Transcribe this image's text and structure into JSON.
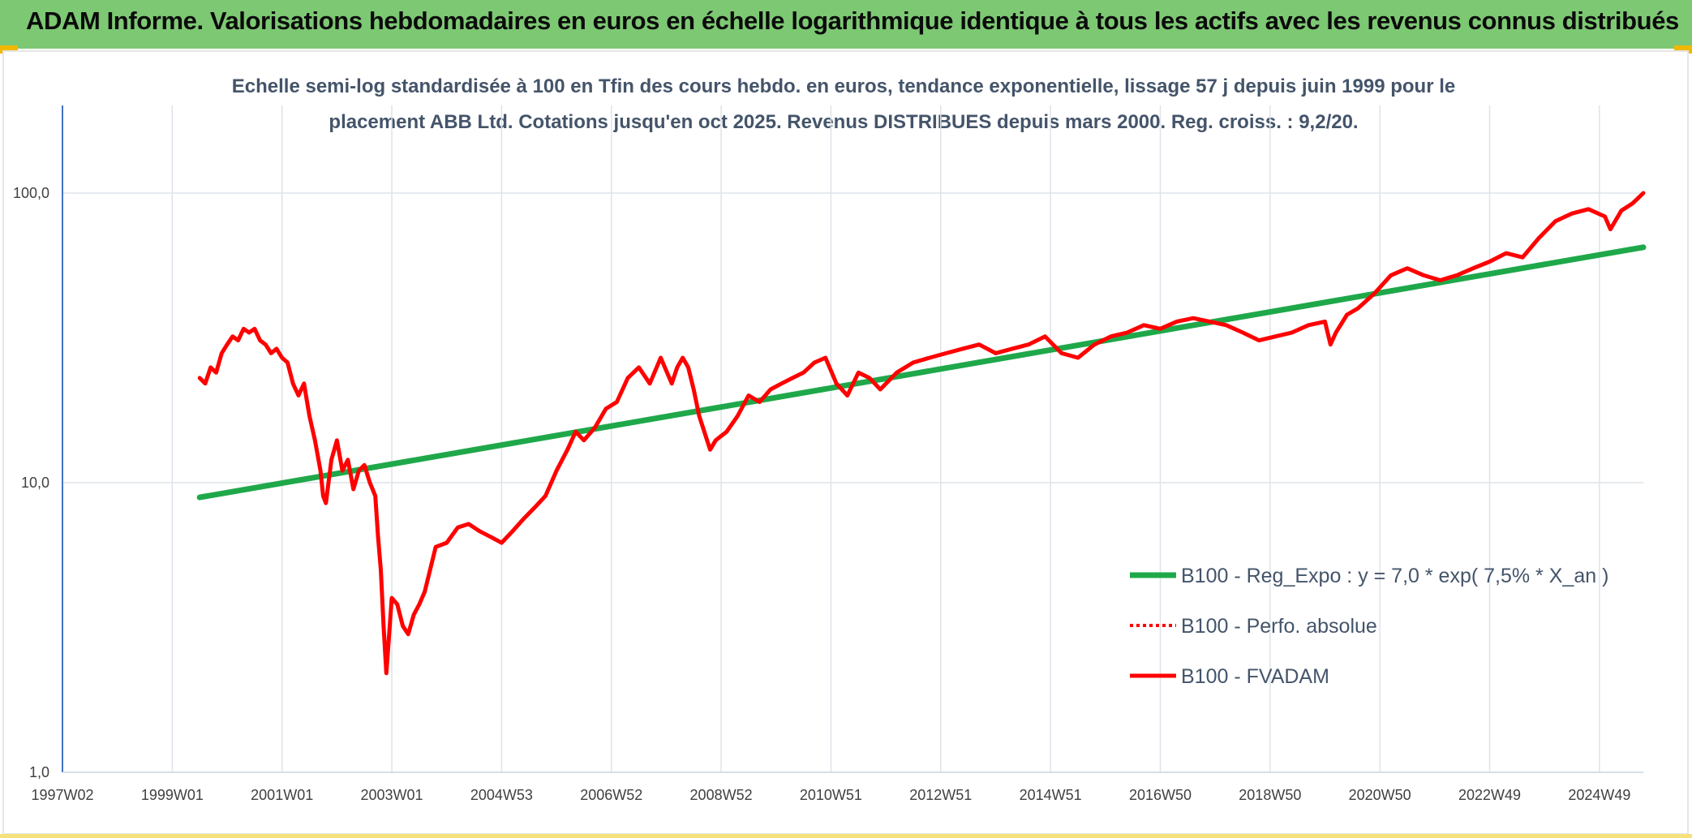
{
  "header": {
    "title": "ADAM Informe. Valorisations hebdomadaires en euros en échelle logarithmique identique à tous les actifs avec les revenus connus distribués"
  },
  "colors": {
    "banner": "#7dc873",
    "trend": "#1fa84a",
    "perf": "#ff0000",
    "fvadam": "#ff0000",
    "grid": "#dde3ea",
    "axis": "#4472c4"
  },
  "chart_data": {
    "type": "line",
    "title_line1": "Echelle semi-log standardisée à 100 en Tfin des cours hebdo. en euros, tendance exponentielle, lissage 57 j depuis juin 1999 pour le",
    "title_line2": "placement ABB Ltd. Cotations jusqu'en oct 2025. Revenus DISTRIBUES depuis mars 2000. Reg. croiss. : 9,2/20.",
    "y_scale": "log",
    "ylim": [
      1,
      200
    ],
    "y_ticks": [
      {
        "value": 1,
        "label": "1,0"
      },
      {
        "value": 10,
        "label": "10,0"
      },
      {
        "value": 100,
        "label": "100,0"
      }
    ],
    "xlim": [
      1997.0,
      2025.8
    ],
    "x_ticks": [
      {
        "value": 1997.0,
        "label": "1997W02"
      },
      {
        "value": 1999.0,
        "label": "1999W01"
      },
      {
        "value": 2001.0,
        "label": "2001W01"
      },
      {
        "value": 2003.0,
        "label": "2003W01"
      },
      {
        "value": 2005.0,
        "label": "2004W53"
      },
      {
        "value": 2007.0,
        "label": "2006W52"
      },
      {
        "value": 2009.0,
        "label": "2008W52"
      },
      {
        "value": 2011.0,
        "label": "2010W51"
      },
      {
        "value": 2013.0,
        "label": "2012W51"
      },
      {
        "value": 2015.0,
        "label": "2014W51"
      },
      {
        "value": 2017.0,
        "label": "2016W50"
      },
      {
        "value": 2019.0,
        "label": "2018W50"
      },
      {
        "value": 2021.0,
        "label": "2020W50"
      },
      {
        "value": 2023.0,
        "label": "2022W49"
      },
      {
        "value": 2025.0,
        "label": "2024W49"
      }
    ],
    "grid": true,
    "legend_position": "bottom-right",
    "series": [
      {
        "name": "B100 - Reg_Expo : y = 7,0 * exp( 7,5% *  X_an )",
        "style": "solid",
        "color": "#1fa84a",
        "x": [
          1999.5,
          2025.8
        ],
        "y": [
          8.9,
          65
        ]
      },
      {
        "name": "B100 - Perfo. absolue",
        "style": "dotted",
        "color": "#ff0000",
        "x": [],
        "y": []
      },
      {
        "name": "B100 - FVADAM",
        "style": "solid",
        "color": "#ff0000",
        "x": [
          1999.5,
          1999.6,
          1999.7,
          1999.8,
          1999.9,
          2000.0,
          2000.1,
          2000.2,
          2000.3,
          2000.4,
          2000.5,
          2000.6,
          2000.7,
          2000.8,
          2000.9,
          2001.0,
          2001.1,
          2001.2,
          2001.3,
          2001.4,
          2001.5,
          2001.6,
          2001.7,
          2001.75,
          2001.8,
          2001.9,
          2002.0,
          2002.1,
          2002.2,
          2002.3,
          2002.4,
          2002.5,
          2002.6,
          2002.7,
          2002.75,
          2002.8,
          2002.85,
          2002.9,
          2003.0,
          2003.1,
          2003.2,
          2003.3,
          2003.4,
          2003.5,
          2003.6,
          2003.8,
          2004.0,
          2004.2,
          2004.4,
          2004.6,
          2004.8,
          2005.0,
          2005.2,
          2005.4,
          2005.6,
          2005.8,
          2006.0,
          2006.2,
          2006.35,
          2006.5,
          2006.7,
          2006.9,
          2007.1,
          2007.3,
          2007.5,
          2007.7,
          2007.9,
          2008.1,
          2008.2,
          2008.3,
          2008.4,
          2008.5,
          2008.6,
          2008.8,
          2008.9,
          2009.1,
          2009.3,
          2009.5,
          2009.7,
          2009.9,
          2010.1,
          2010.3,
          2010.5,
          2010.7,
          2010.9,
          2011.1,
          2011.3,
          2011.5,
          2011.7,
          2011.9,
          2012.2,
          2012.5,
          2012.8,
          2013.1,
          2013.4,
          2013.7,
          2014.0,
          2014.3,
          2014.6,
          2014.9,
          2015.2,
          2015.5,
          2015.8,
          2016.1,
          2016.4,
          2016.7,
          2017.0,
          2017.3,
          2017.6,
          2017.9,
          2018.2,
          2018.5,
          2018.8,
          2019.1,
          2019.4,
          2019.7,
          2020.0,
          2020.1,
          2020.2,
          2020.4,
          2020.6,
          2020.9,
          2021.2,
          2021.5,
          2021.8,
          2022.1,
          2022.4,
          2022.7,
          2023.0,
          2023.3,
          2023.6,
          2023.9,
          2024.2,
          2024.5,
          2024.8,
          2025.1,
          2025.2,
          2025.4,
          2025.6,
          2025.8
        ],
        "y": [
          23,
          22,
          25,
          24,
          28,
          30,
          32,
          31,
          34,
          33,
          34,
          31,
          30,
          28,
          29,
          27,
          26,
          22,
          20,
          22,
          17,
          14,
          11,
          9,
          8.5,
          12,
          14,
          11,
          12,
          9.5,
          11,
          11.5,
          10,
          9,
          6.5,
          5,
          3.2,
          2.2,
          4,
          3.8,
          3.2,
          3,
          3.5,
          3.8,
          4.2,
          6,
          6.2,
          7,
          7.2,
          6.8,
          6.5,
          6.2,
          6.8,
          7.5,
          8.2,
          9,
          11,
          13,
          15,
          14,
          15.5,
          18,
          19,
          23,
          25,
          22,
          27,
          22,
          25,
          27,
          25,
          21,
          17,
          13,
          14,
          15,
          17,
          20,
          19,
          21,
          22,
          23,
          24,
          26,
          27,
          22,
          20,
          24,
          23,
          21,
          24,
          26,
          27,
          28,
          29,
          30,
          28,
          29,
          30,
          32,
          28,
          27,
          30,
          32,
          33,
          35,
          34,
          36,
          37,
          36,
          35,
          33,
          31,
          32,
          33,
          35,
          36,
          30,
          33,
          38,
          40,
          45,
          52,
          55,
          52,
          50,
          52,
          55,
          58,
          62,
          60,
          70,
          80,
          85,
          88,
          83,
          75,
          87,
          92,
          100
        ]
      }
    ]
  }
}
